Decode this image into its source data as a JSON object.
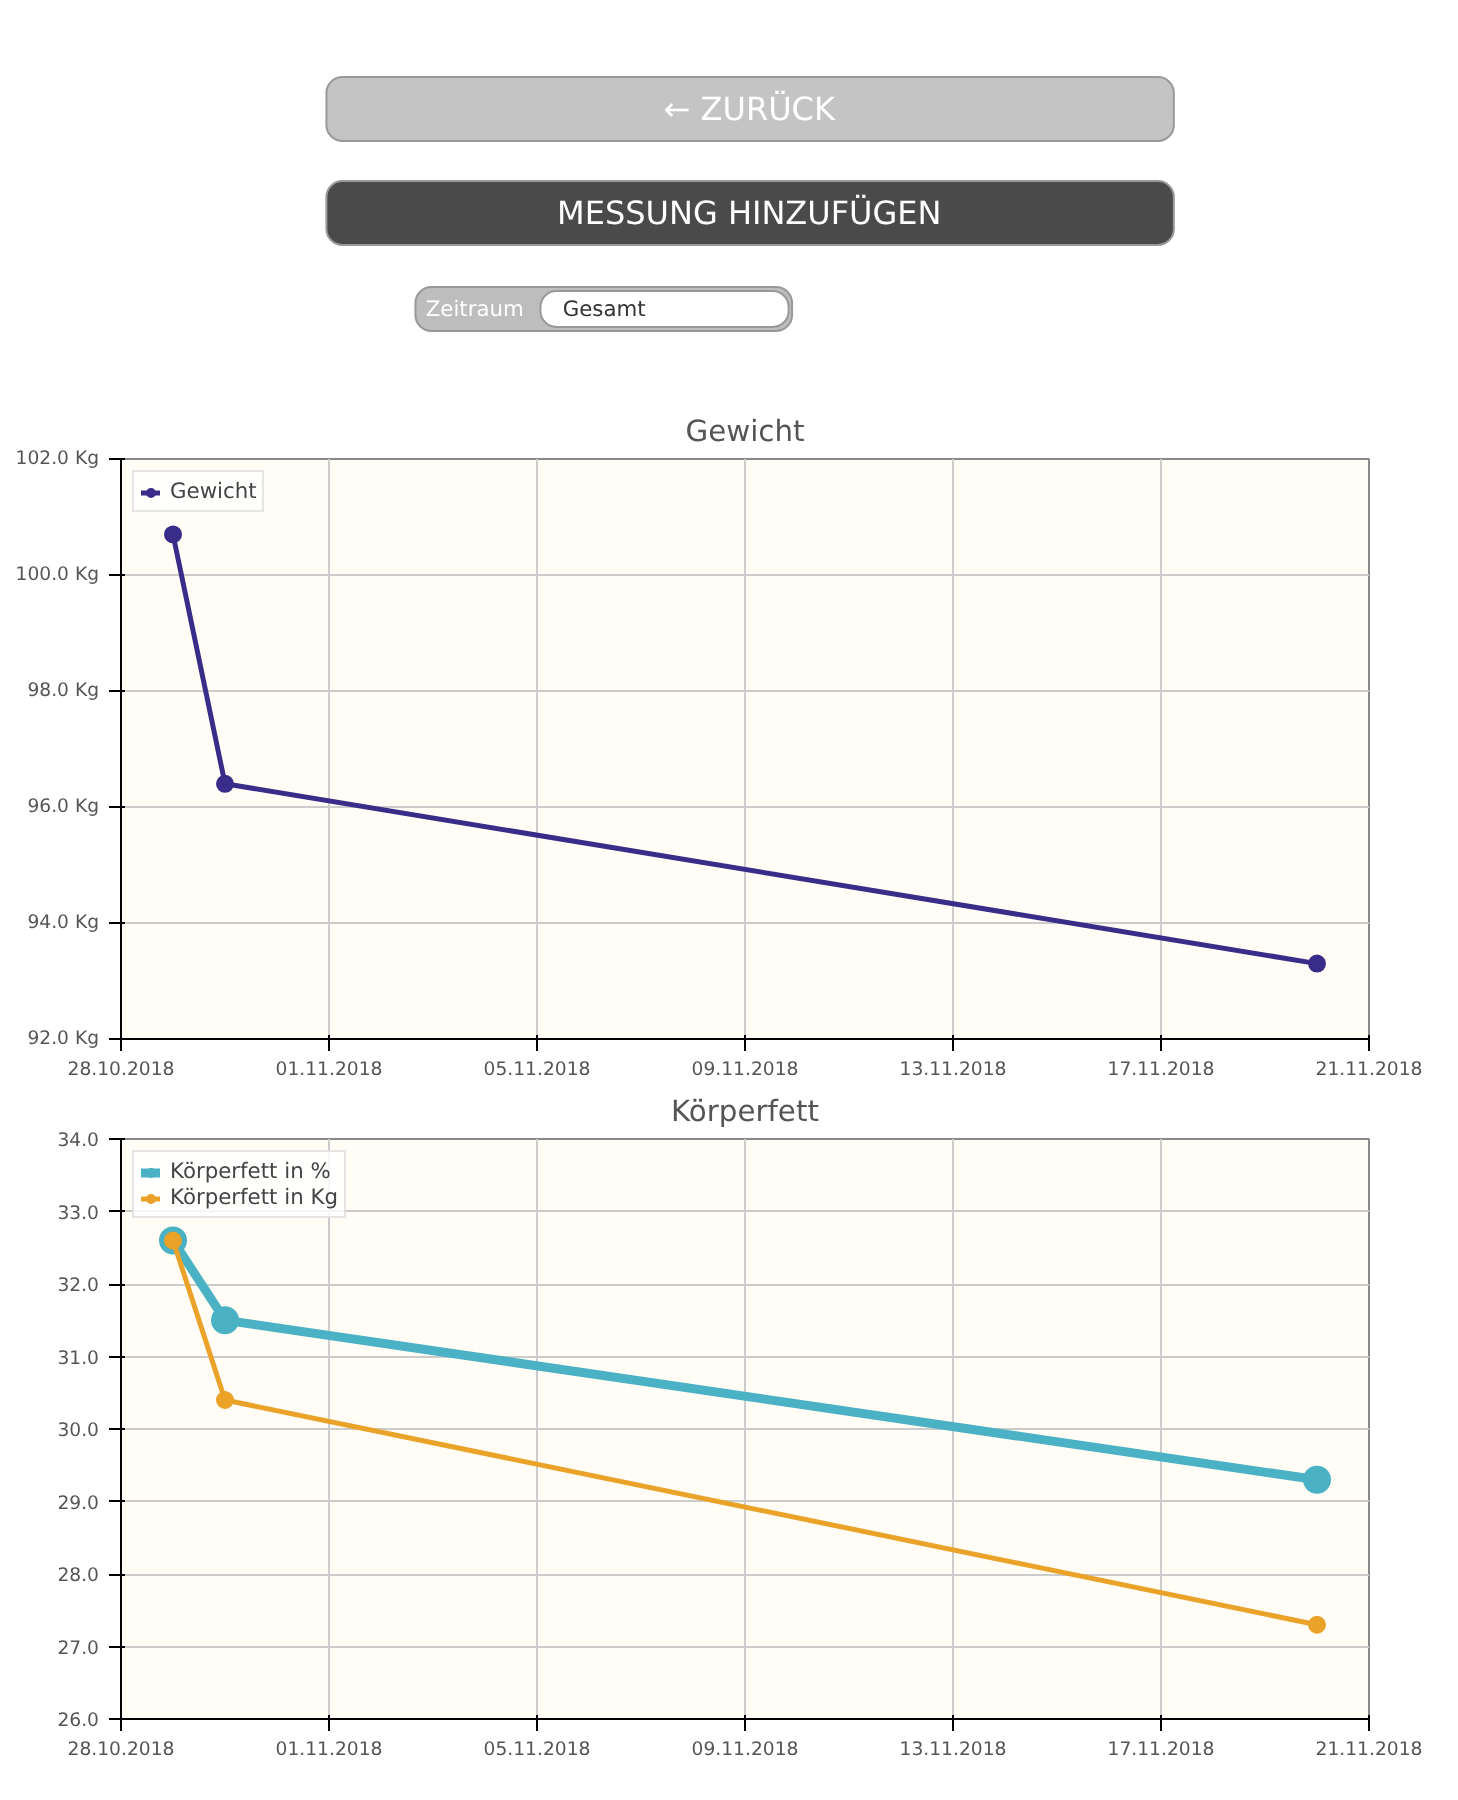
{
  "chart_data": [
    {
      "type": "other",
      "annotations": [
        "← ZURÜCK",
        "MESSUNG HINZUFÜGEN",
        "Zeitraum",
        "Gesamt"
      ]
    },
    {
      "type": "line",
      "title": "Gewicht",
      "x": [
        "2018-10-29",
        "2018-10-30",
        "2018-11-20"
      ],
      "series": [
        {
          "name": "Gewicht",
          "color": "#3a2d8a",
          "values": [
            100.7,
            96.4,
            93.3
          ]
        }
      ],
      "xlim": [
        "2018-10-28",
        "2018-11-21"
      ],
      "xticks": [
        {
          "value": "2018-10-28",
          "label": "28.10.2018"
        },
        {
          "value": "2018-11-01",
          "label": "01.11.2018"
        },
        {
          "value": "2018-11-05",
          "label": "05.11.2018"
        },
        {
          "value": "2018-11-09",
          "label": "09.11.2018"
        },
        {
          "value": "2018-11-13",
          "label": "13.11.2018"
        },
        {
          "value": "2018-11-17",
          "label": "17.11.2018"
        },
        {
          "value": "2018-11-21",
          "label": "21.11.2018"
        }
      ],
      "ylim": [
        92,
        102
      ],
      "yticks": [
        {
          "value": 92,
          "label": "92.0 Kg"
        },
        {
          "value": 94,
          "label": "94.0 Kg"
        },
        {
          "value": 96,
          "label": "96.0 Kg"
        },
        {
          "value": 98,
          "label": "98.0 Kg"
        },
        {
          "value": 100,
          "label": "100.0 Kg"
        },
        {
          "value": 102,
          "label": "102.0 Kg"
        }
      ],
      "grid": true,
      "legend": "top left",
      "marker": "circle"
    },
    {
      "type": "line",
      "title": "Körperfett",
      "x": [
        "2018-10-29",
        "2018-10-30",
        "2018-11-20"
      ],
      "series": [
        {
          "name": "Körperfett in %",
          "color": "#4bb2c5",
          "values": [
            32.6,
            31.5,
            29.3
          ]
        },
        {
          "name": "Körperfett in Kg",
          "color": "#eaa228",
          "values": [
            32.6,
            30.4,
            27.3
          ]
        }
      ],
      "xlim": [
        "2018-10-28",
        "2018-11-21"
      ],
      "xticks": [
        {
          "value": "2018-10-28",
          "label": "28.10.2018"
        },
        {
          "value": "2018-11-01",
          "label": "01.11.2018"
        },
        {
          "value": "2018-11-05",
          "label": "05.11.2018"
        },
        {
          "value": "2018-11-09",
          "label": "09.11.2018"
        },
        {
          "value": "2018-11-13",
          "label": "13.11.2018"
        },
        {
          "value": "2018-11-17",
          "label": "17.11.2018"
        },
        {
          "value": "2018-11-21",
          "label": "21.11.2018"
        }
      ],
      "ylim": [
        26,
        34
      ],
      "yticks": [
        {
          "value": 26,
          "label": "26.0"
        },
        {
          "value": 27,
          "label": "27.0"
        },
        {
          "value": 28,
          "label": "28.0"
        },
        {
          "value": 29,
          "label": "29.0"
        },
        {
          "value": 30,
          "label": "30.0"
        },
        {
          "value": 31,
          "label": "31.0"
        },
        {
          "value": 32,
          "label": "32.0"
        },
        {
          "value": 33,
          "label": "33.0"
        },
        {
          "value": 34,
          "label": "34.0"
        }
      ],
      "grid": true,
      "legend": "top left",
      "marker": "circle"
    }
  ]
}
